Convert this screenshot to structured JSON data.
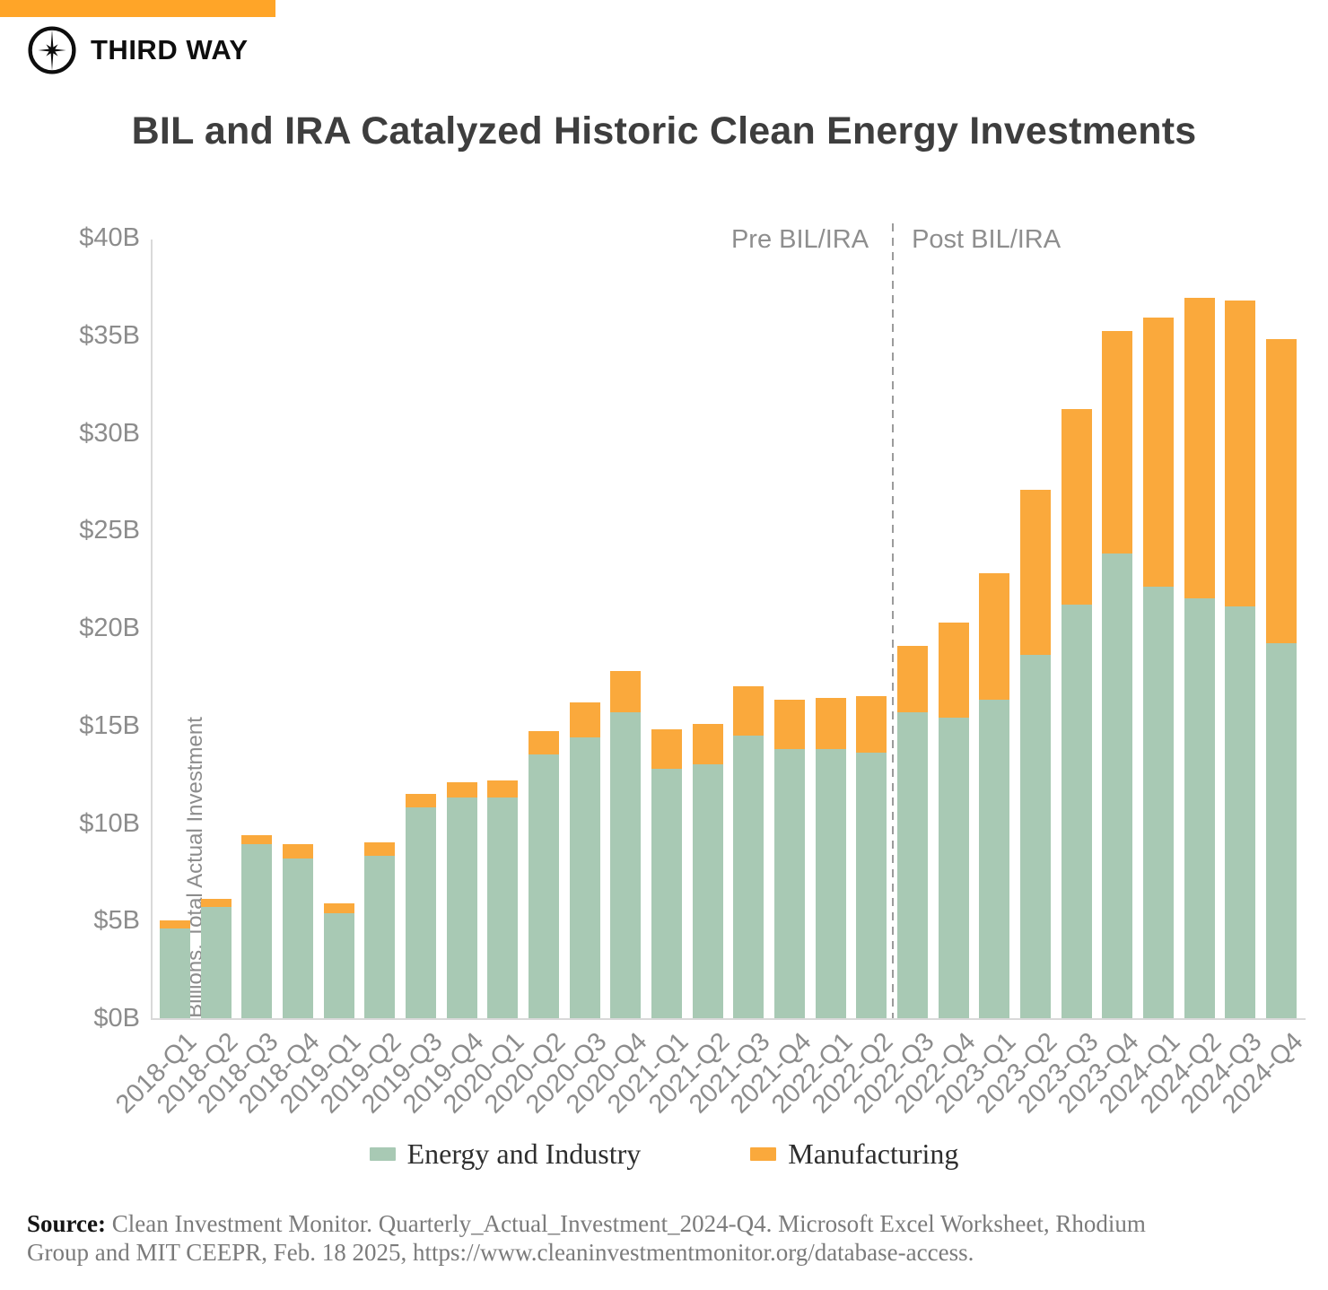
{
  "brand": {
    "name": "THIRD WAY",
    "logo_icon": "compass-star-icon"
  },
  "title": "BIL and IRA Catalyzed Historic Clean Energy Investments",
  "chart_data": {
    "type": "bar",
    "stacked": true,
    "title": "BIL and IRA Catalyzed Historic Clean Energy Investments",
    "xlabel": "",
    "ylabel": "Billions, Total Actual Investment",
    "ylim": [
      0,
      40
    ],
    "ytick_step": 5,
    "yticks": [
      "$0B",
      "$5B",
      "$10B",
      "$15B",
      "$20B",
      "$25B",
      "$30B",
      "$35B",
      "$40B"
    ],
    "grid": false,
    "legend_position": "bottom",
    "categories": [
      "2018-Q1",
      "2018-Q2",
      "2018-Q3",
      "2018-Q4",
      "2019-Q1",
      "2019-Q2",
      "2019-Q3",
      "2019-Q4",
      "2020-Q1",
      "2020-Q2",
      "2020-Q3",
      "2020-Q4",
      "2021-Q1",
      "2021-Q2",
      "2021-Q3",
      "2021-Q4",
      "2022-Q1",
      "2022-Q2",
      "2022-Q3",
      "2022-Q4",
      "2023-Q1",
      "2023-Q2",
      "2023-Q3",
      "2023-Q4",
      "2024-Q1",
      "2024-Q2",
      "2024-Q3",
      "2024-Q4"
    ],
    "series": [
      {
        "name": "Energy and Industry",
        "color": "#A8C9B4",
        "values": [
          4.6,
          5.7,
          8.9,
          8.2,
          5.4,
          8.3,
          10.8,
          11.3,
          11.3,
          13.5,
          14.4,
          15.7,
          12.8,
          13.0,
          14.5,
          13.8,
          13.8,
          13.6,
          15.7,
          15.4,
          16.3,
          18.6,
          21.2,
          23.8,
          22.1,
          21.5,
          21.1,
          19.2
        ]
      },
      {
        "name": "Manufacturing",
        "color": "#FAA93C",
        "values": [
          0.4,
          0.4,
          0.5,
          0.7,
          0.5,
          0.7,
          0.7,
          0.8,
          0.9,
          1.2,
          1.8,
          2.1,
          2.0,
          2.1,
          2.5,
          2.5,
          2.6,
          2.9,
          3.4,
          4.9,
          6.5,
          8.5,
          10.0,
          11.4,
          13.8,
          15.4,
          15.7,
          15.6
        ]
      }
    ],
    "annotations": {
      "divider_after_category": "2022-Q2",
      "pre_label": "Pre BIL/IRA",
      "post_label": "Post BIL/IRA"
    }
  },
  "footer": {
    "source_prefix": "Source:",
    "source_line1": "Clean Investment Monitor. Quarterly_Actual_Investment_2024-Q4. Microsoft Excel Worksheet, Rhodium",
    "source_line2": "Group and MIT CEEPR, Feb. 18 2025, https://www.cleaninvestmentmonitor.org/database-access."
  },
  "colors": {
    "header_strip": "#FFA528",
    "bar_green": "#A8C9B4",
    "bar_orange": "#FAA93C",
    "axis_line": "#D9D9D9",
    "tick_text": "#8C8C8C",
    "divider": "#9B9B9B",
    "title_text": "#3E3E3E"
  }
}
